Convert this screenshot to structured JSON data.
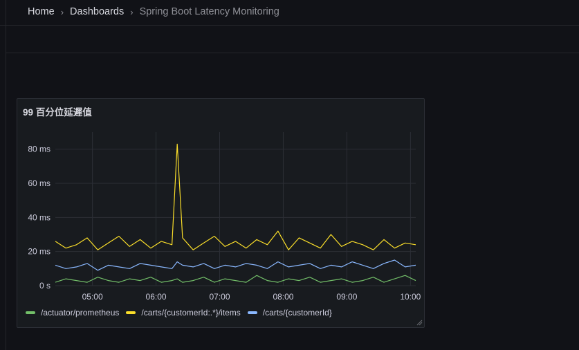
{
  "breadcrumb": {
    "home": "Home",
    "dashboards": "Dashboards",
    "current": "Spring Boot Latency Monitoring"
  },
  "panel": {
    "title": "99 百分位延遲值"
  },
  "colors": {
    "background": "#111217",
    "panel": "#181b1f",
    "green": "#73bf69",
    "yellow": "#fade2a",
    "blue": "#8ab8ff"
  },
  "chart_data": {
    "type": "line",
    "title": "99 百分位延遲值",
    "xlabel": "",
    "ylabel": "",
    "y_ticks": [
      "0 s",
      "20 ms",
      "40 ms",
      "60 ms",
      "80 ms"
    ],
    "ylim": [
      0,
      90
    ],
    "x_ticks": [
      "05:00",
      "06:00",
      "07:00",
      "08:00",
      "09:00",
      "10:00"
    ],
    "x": [
      "04:25",
      "04:35",
      "04:45",
      "04:55",
      "05:05",
      "05:15",
      "05:25",
      "05:35",
      "05:45",
      "05:55",
      "06:05",
      "06:15",
      "06:20",
      "06:25",
      "06:35",
      "06:45",
      "06:55",
      "07:05",
      "07:15",
      "07:25",
      "07:35",
      "07:45",
      "07:55",
      "08:05",
      "08:15",
      "08:25",
      "08:35",
      "08:45",
      "08:55",
      "09:05",
      "09:15",
      "09:25",
      "09:35",
      "09:45",
      "09:55",
      "10:05"
    ],
    "grid": true,
    "legend_position": "bottom",
    "series": [
      {
        "name": "/actuator/prometheus",
        "color": "#73bf69",
        "values": [
          2,
          4,
          3,
          2,
          5,
          3,
          2,
          4,
          3,
          5,
          2,
          3,
          4,
          2,
          3,
          5,
          2,
          4,
          3,
          2,
          6,
          3,
          2,
          4,
          3,
          5,
          2,
          3,
          4,
          2,
          3,
          5,
          2,
          4,
          6,
          3
        ]
      },
      {
        "name": "/carts/{customerId:.*}/items",
        "color": "#fade2a",
        "values": [
          26,
          22,
          24,
          28,
          21,
          25,
          29,
          23,
          27,
          22,
          26,
          24,
          83,
          28,
          21,
          25,
          29,
          23,
          26,
          22,
          27,
          24,
          32,
          21,
          28,
          25,
          22,
          30,
          23,
          26,
          24,
          21,
          27,
          22,
          25,
          24
        ]
      },
      {
        "name": "/carts/{customerId}",
        "color": "#8ab8ff",
        "values": [
          12,
          10,
          11,
          13,
          9,
          12,
          11,
          10,
          13,
          12,
          11,
          10,
          14,
          12,
          11,
          13,
          10,
          12,
          11,
          13,
          12,
          10,
          14,
          11,
          12,
          13,
          10,
          12,
          11,
          14,
          12,
          10,
          13,
          15,
          11,
          12
        ]
      }
    ]
  }
}
